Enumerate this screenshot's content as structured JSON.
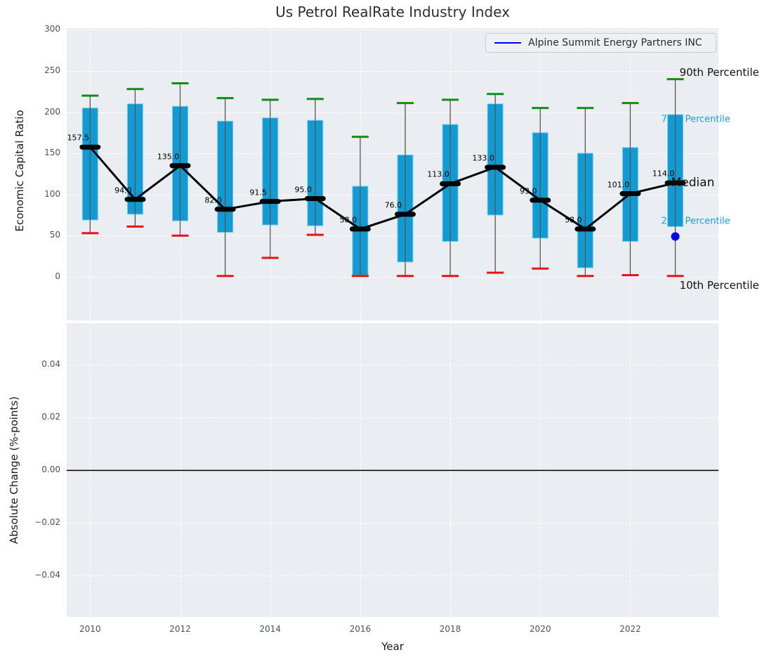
{
  "title": "Us Petrol RealRate Industry Index",
  "xlabel": "Year",
  "legend": {
    "label": "Alpine Summit Energy Partners INC"
  },
  "top_axis": {
    "ylabel": "Economic Capital Ratio",
    "yticks": [
      {
        "v": 300,
        "label": "300"
      },
      {
        "v": 250,
        "label": "250"
      },
      {
        "v": 200,
        "label": "200"
      },
      {
        "v": 150,
        "label": "150"
      },
      {
        "v": 100,
        "label": "100"
      },
      {
        "v": 50,
        "label": "50"
      },
      {
        "v": 0,
        "label": "0"
      }
    ]
  },
  "bottom_axis": {
    "ylabel": "Absolute Change (%-points)",
    "yticks": [
      {
        "v": 0.04,
        "label": "0.04"
      },
      {
        "v": 0.02,
        "label": "0.02"
      },
      {
        "v": 0.0,
        "label": "0.00"
      },
      {
        "v": -0.02,
        "label": "−0.02"
      },
      {
        "v": -0.04,
        "label": "−0.04"
      }
    ]
  },
  "xticks": [
    {
      "v": 2010,
      "label": "2010"
    },
    {
      "v": 2012,
      "label": "2012"
    },
    {
      "v": 2014,
      "label": "2014"
    },
    {
      "v": 2016,
      "label": "2016"
    },
    {
      "v": 2018,
      "label": "2018"
    },
    {
      "v": 2020,
      "label": "2020"
    },
    {
      "v": 2022,
      "label": "2022"
    }
  ],
  "percentile_labels": [
    {
      "text": "90th Percentile",
      "style": "black",
      "anchor": "p90"
    },
    {
      "text": "75th Percentile",
      "style": "cyan",
      "anchor": "q3"
    },
    {
      "text": "Median",
      "style": "median",
      "anchor": "median"
    },
    {
      "text": "25th Percentile",
      "style": "cyan",
      "anchor": "q1"
    },
    {
      "text": "10th Percentile",
      "style": "black",
      "anchor": "p10"
    }
  ],
  "colors": {
    "box": "#129bd3",
    "box_edge": "#7ec8e8",
    "whisker": "#555555",
    "cap_90th": "#0e8e13",
    "cap_10th": "#e81212",
    "median": "#000000",
    "company": "#0000ee",
    "axes_bg": "#eaedf1",
    "grid": "#ffffff",
    "tick_label": "#44536a",
    "cyan_label": "#1a9fd6",
    "zero_line": "#000000"
  },
  "chart_data": [
    {
      "type": "box",
      "title": "Us Petrol RealRate Industry Index",
      "xlabel": "Year",
      "ylabel": "Economic Capital Ratio",
      "years": [
        2010,
        2011,
        2012,
        2013,
        2014,
        2015,
        2016,
        2017,
        2018,
        2019,
        2020,
        2021,
        2022,
        2023
      ],
      "p10": [
        53,
        61,
        50,
        1,
        23,
        51,
        1,
        1,
        1,
        5,
        10,
        1,
        2,
        1
      ],
      "q1": [
        69,
        76,
        68,
        54,
        63,
        62,
        2,
        18,
        43,
        75,
        47,
        11,
        43,
        61
      ],
      "median": [
        157.5,
        94.0,
        135.0,
        82.0,
        91.5,
        95.0,
        58.0,
        76.0,
        113.0,
        133.0,
        93.0,
        58.0,
        101.0,
        114.0
      ],
      "q3": [
        205,
        210,
        207,
        189,
        193,
        190,
        110,
        148,
        185,
        210,
        175,
        150,
        157,
        197
      ],
      "p90": [
        220,
        228,
        235,
        217,
        215,
        216,
        170,
        211,
        215,
        222,
        205,
        205,
        211,
        240
      ],
      "median_labels": [
        "157.5",
        "94.0",
        "135.0",
        "82.0",
        "91.5",
        "95.0",
        "58.0",
        "76.0",
        "113.0",
        "133.0",
        "93.0",
        "58.0",
        "101.0",
        "114.0"
      ],
      "series": [
        {
          "name": "Alpine Summit Energy Partners INC",
          "points": [
            {
              "x": 2023,
              "y": 49
            }
          ]
        }
      ],
      "xlim": [
        2009.48,
        2023.96
      ],
      "ylim": [
        -53,
        302
      ],
      "grid": true,
      "legend_position": "upper right"
    },
    {
      "type": "line",
      "xlabel": "Year",
      "ylabel": "Absolute Change (%-points)",
      "x": [],
      "series": [],
      "zero_line": 0.0,
      "xlim": [
        2009.48,
        2023.96
      ],
      "ylim": [
        -0.0556,
        0.0558
      ],
      "grid": true
    }
  ]
}
